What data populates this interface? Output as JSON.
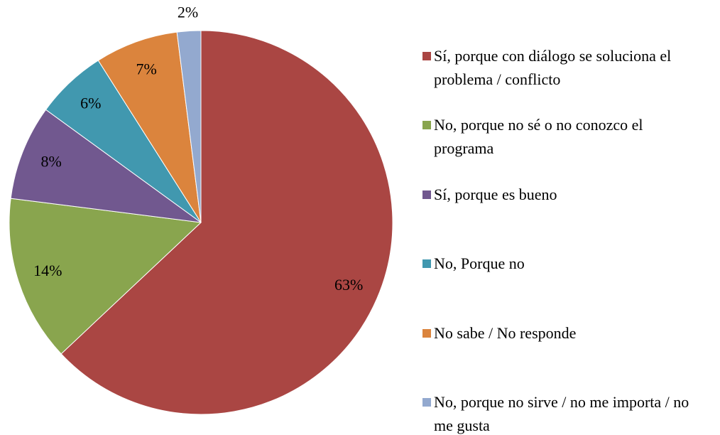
{
  "chart_data": {
    "type": "pie",
    "categories": [
      "Sí, porque con diálogo se soluciona el problema / conflicto",
      "No, porque no sé o no conozco el programa",
      "Sí, porque es bueno",
      "No, Porque no",
      "No sabe / No responde",
      "No, porque no sirve / no me importa / no me gusta"
    ],
    "values": [
      63,
      14,
      8,
      6,
      7,
      2
    ],
    "value_labels": [
      "63%",
      "14%",
      "8%",
      "6%",
      "7%",
      "2%"
    ],
    "colors": [
      "#aa4643",
      "#89a54e",
      "#71588f",
      "#4198af",
      "#db843d",
      "#93a9cf"
    ]
  }
}
